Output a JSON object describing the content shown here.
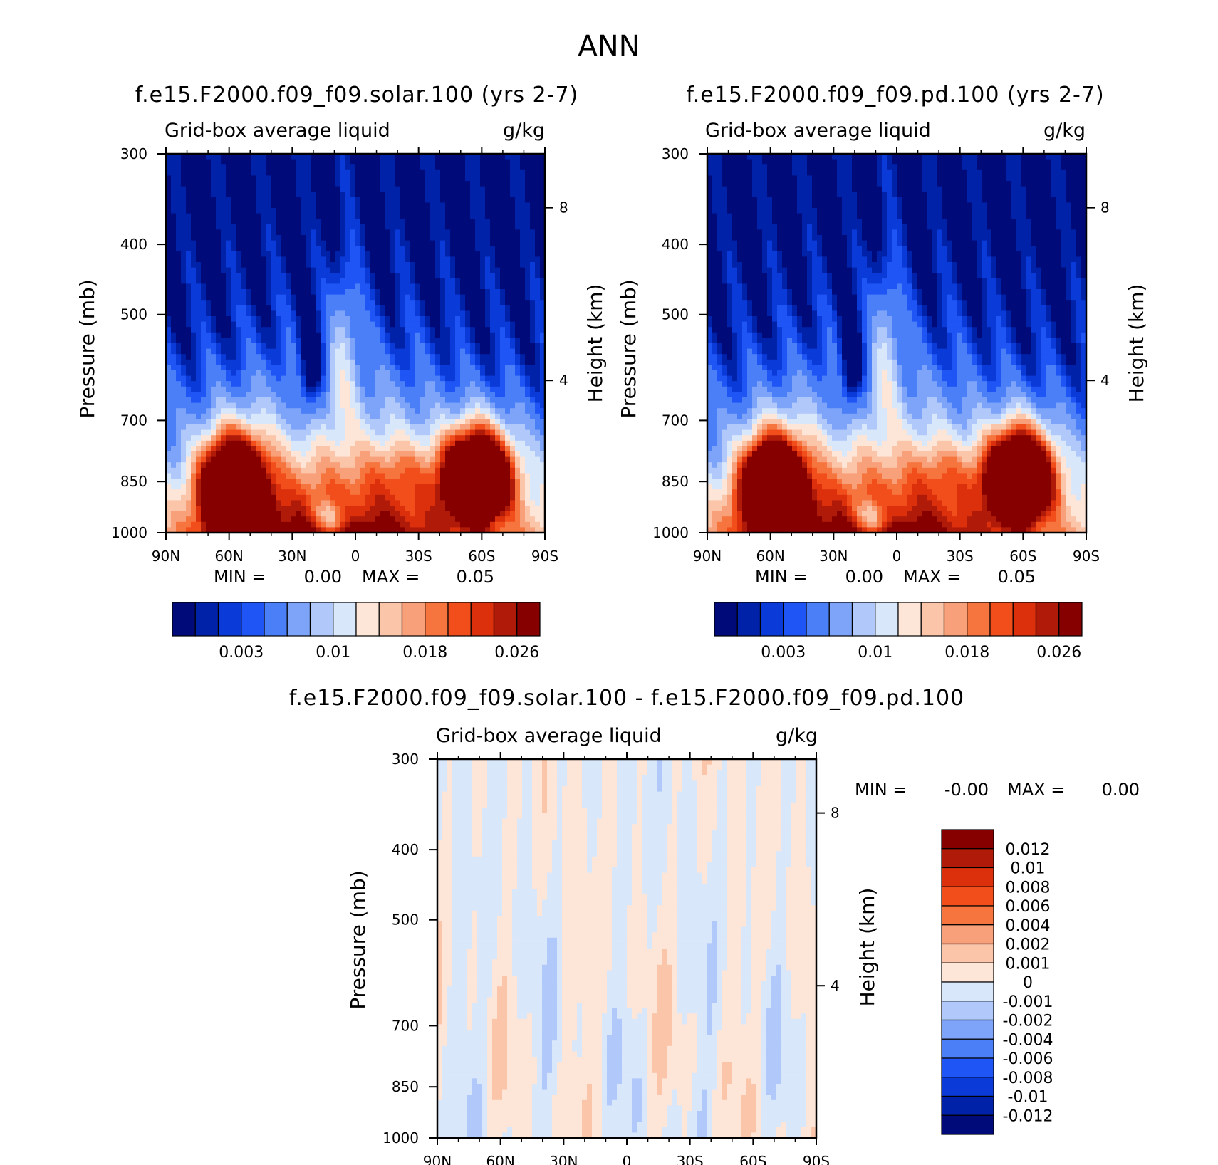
{
  "page_title": "ANN",
  "colors": {
    "abs_scale": [
      "#000a78",
      "#0022a8",
      "#0a3ad8",
      "#1f55f5",
      "#4a7ff8",
      "#7da4f8",
      "#b0c9fa",
      "#d9e7fb",
      "#fde6d8",
      "#fbc5a9",
      "#f8a07a",
      "#f6753e",
      "#f24e1b",
      "#dc300d",
      "#b01b09",
      "#870000"
    ],
    "diff_scale": [
      "#000a78",
      "#0022a8",
      "#0a3ad8",
      "#1f55f5",
      "#4a7ff8",
      "#7da4f8",
      "#b0c9fa",
      "#d9e7fb",
      "#fde6d8",
      "#fbc5a9",
      "#f8a07a",
      "#f6753e",
      "#f24e1b",
      "#dc300d",
      "#b01b09",
      "#870000"
    ]
  },
  "chart_data": [
    {
      "type": "heatmap",
      "title": "f.e15.F2000.f09_f09.solar.100 (yrs 2-7)",
      "subtitle_left": "Grid-box average liquid",
      "subtitle_right": "g/kg",
      "xlabel": "",
      "ylabel": "Pressure (mb)",
      "ylabel_right": "Height (km)",
      "x_ticks": [
        "90N",
        "60N",
        "30N",
        "0",
        "30S",
        "60S",
        "90S"
      ],
      "xlim": [
        90,
        -90
      ],
      "y_ticks": [
        300,
        400,
        500,
        700,
        850,
        1000
      ],
      "ylim": [
        1000,
        300
      ],
      "y_scale": "log",
      "right_ticks": [
        "8",
        "4"
      ],
      "min_label": "MIN =",
      "min_value": "0.00",
      "max_label": "MAX =",
      "max_value": "0.05",
      "colorbar_labels": [
        "0.003",
        "0.01",
        "0.018",
        "0.026"
      ],
      "colorbar_levels": [
        0.001,
        0.002,
        0.003,
        0.004,
        0.006,
        0.008,
        0.01,
        0.012,
        0.014,
        0.016,
        0.018,
        0.02,
        0.022,
        0.024,
        0.026
      ],
      "features": [
        {
          "lat": 58,
          "p": 870,
          "peak": 0.05
        },
        {
          "lat": -58,
          "p": 840,
          "peak": 0.05
        },
        {
          "lat": 5,
          "p": 560,
          "peak": 0.009
        }
      ]
    },
    {
      "type": "heatmap",
      "title": "f.e15.F2000.f09_f09.pd.100 (yrs 2-7)",
      "subtitle_left": "Grid-box average liquid",
      "subtitle_right": "g/kg",
      "xlabel": "",
      "ylabel": "Pressure (mb)",
      "ylabel_right": "Height (km)",
      "x_ticks": [
        "90N",
        "60N",
        "30N",
        "0",
        "30S",
        "60S",
        "90S"
      ],
      "xlim": [
        90,
        -90
      ],
      "y_ticks": [
        300,
        400,
        500,
        700,
        850,
        1000
      ],
      "ylim": [
        1000,
        300
      ],
      "y_scale": "log",
      "right_ticks": [
        "8",
        "4"
      ],
      "min_label": "MIN =",
      "min_value": "0.00",
      "max_label": "MAX =",
      "max_value": "0.05",
      "colorbar_labels": [
        "0.003",
        "0.01",
        "0.018",
        "0.026"
      ],
      "colorbar_levels": [
        0.001,
        0.002,
        0.003,
        0.004,
        0.006,
        0.008,
        0.01,
        0.012,
        0.014,
        0.016,
        0.018,
        0.02,
        0.022,
        0.024,
        0.026
      ],
      "features": [
        {
          "lat": 58,
          "p": 870,
          "peak": 0.05
        },
        {
          "lat": -58,
          "p": 840,
          "peak": 0.05
        },
        {
          "lat": 5,
          "p": 560,
          "peak": 0.009
        }
      ]
    },
    {
      "type": "heatmap",
      "title": "f.e15.F2000.f09_f09.solar.100 - f.e15.F2000.f09_f09.pd.100",
      "subtitle_left": "Grid-box average liquid",
      "subtitle_right": "g/kg",
      "xlabel": "",
      "ylabel": "Pressure (mb)",
      "ylabel_right": "Height (km)",
      "x_ticks": [
        "90N",
        "60N",
        "30N",
        "0",
        "30S",
        "60S",
        "90S"
      ],
      "xlim": [
        90,
        -90
      ],
      "y_ticks": [
        300,
        400,
        500,
        700,
        850,
        1000
      ],
      "ylim": [
        1000,
        300
      ],
      "y_scale": "log",
      "right_ticks": [
        "8",
        "4"
      ],
      "min_label": "MIN =",
      "min_value": "-0.00",
      "max_label": "MAX =",
      "max_value": "0.00",
      "colorbar_labels": [
        "0.012",
        "0.01",
        "0.008",
        "0.006",
        "0.004",
        "0.002",
        "0.001",
        "0",
        "-0.001",
        "-0.002",
        "-0.004",
        "-0.006",
        "-0.008",
        "-0.01",
        "-0.012"
      ],
      "colorbar_levels": [
        -0.012,
        -0.01,
        -0.008,
        -0.006,
        -0.004,
        -0.002,
        -0.001,
        0,
        0.001,
        0.002,
        0.004,
        0.006,
        0.008,
        0.01,
        0.012
      ]
    }
  ]
}
